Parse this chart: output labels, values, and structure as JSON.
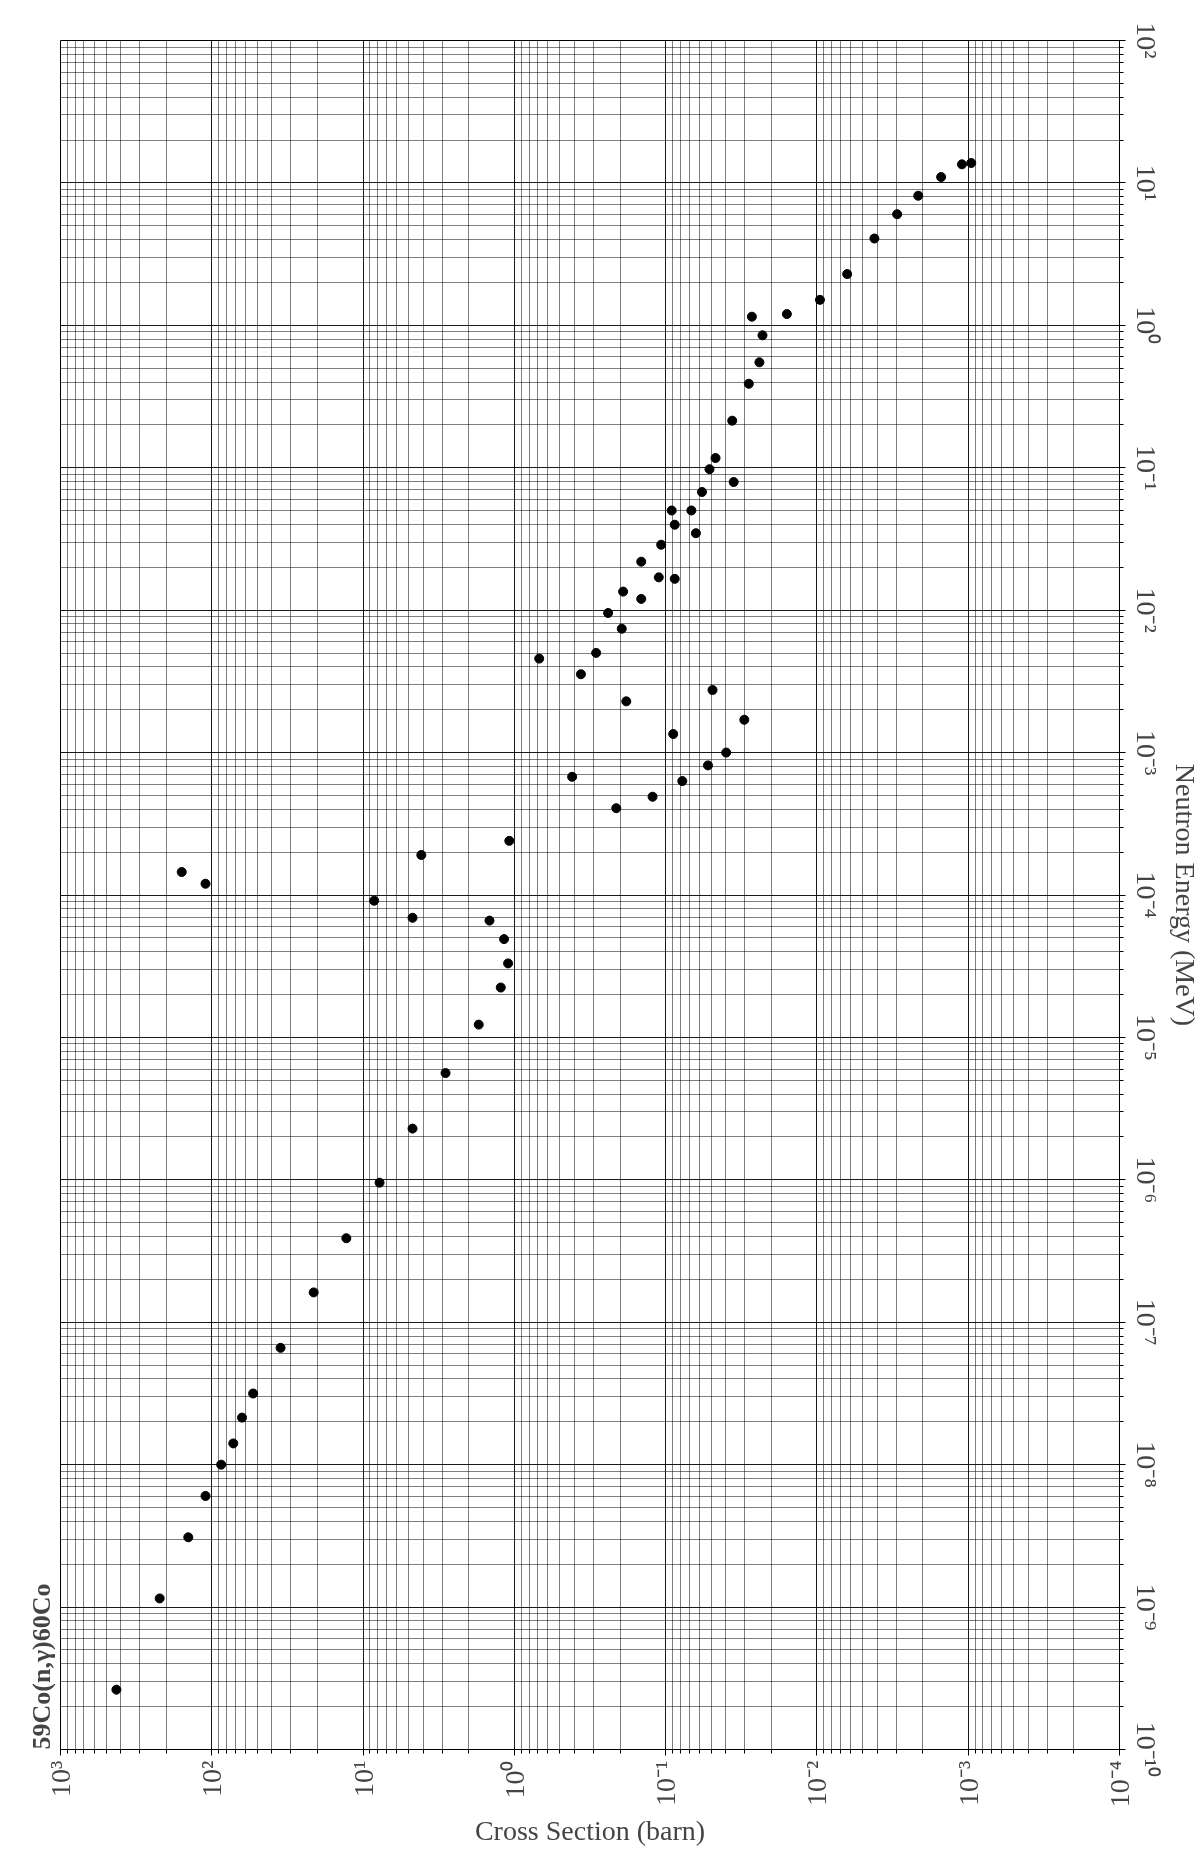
{
  "chart_data": {
    "type": "scatter",
    "title": "59Co(n,γ)60Co",
    "xlabel": "Cross Section (barn)",
    "ylabel": "Neutron Energy (MeV)",
    "x": [
      427,
      221,
      143,
      110,
      86.7,
      72.1,
      63.1,
      53.3,
      35.1,
      21.2,
      12.9,
      7.78,
      4.71,
      2.85,
      1.72,
      1.23,
      1.1,
      1.17,
      1.46,
      158,
      110,
      8.45,
      4.71,
      4.12,
      1.08,
      0.415,
      0.685,
      0.363,
      0.212,
      0.182,
      0.288,
      0.195,
      0.24,
      0.191,
      0.122,
      0.0891,
      0.0776,
      0.0525,
      0.049,
      0.0398,
      0.0302,
      0.145,
      0.145,
      0.111,
      0.0871,
      0.107,
      0.0871,
      0.0676,
      0.0631,
      0.0912,
      0.0575,
      0.0355,
      0.0513,
      0.0468,
      0.0363,
      0.0282,
      0.024,
      0.0229,
      0.0269,
      0.0158,
      0.00955,
      0.00631,
      0.00417,
      0.00295,
      0.00214,
      0.00151,
      0.0011,
      0.000955
    ],
    "values": [
      2.63e-10,
      1.15e-09,
      3.09e-09,
      6.03e-09,
      1e-08,
      1.41e-08,
      2.14e-08,
      3.16e-08,
      6.61e-08,
      1.62e-07,
      3.89e-07,
      9.55e-07,
      2.29e-06,
      5.62e-06,
      1.23e-05,
      2.24e-05,
      3.31e-05,
      4.9e-05,
      6.61e-05,
      0.000145,
      0.00012,
      9.12e-05,
      6.92e-05,
      0.000191,
      0.00024,
      0.000676,
      0.00457,
      0.00355,
      0.000407,
      0.00229,
      0.00501,
      0.00741,
      0.00955,
      0.0135,
      0.00049,
      0.00135,
      0.000631,
      0.000813,
      0.00275,
      0.001,
      0.0017,
      0.012,
      0.0219,
      0.017,
      0.0166,
      0.0288,
      0.0398,
      0.0501,
      0.0347,
      0.0501,
      0.0676,
      0.0794,
      0.0977,
      0.117,
      0.214,
      0.389,
      0.55,
      0.851,
      1.15,
      1.2,
      1.51,
      2.29,
      4.07,
      6.03,
      8.13,
      11.0,
      13.5,
      13.8
    ],
    "log": "xy",
    "xlim": [
      1000,
      0.0001
    ],
    "ylim": [
      1e-10,
      100
    ],
    "xticks": [
      {
        "value": 1000,
        "label": "10³"
      },
      {
        "value": 100,
        "label": "10²"
      },
      {
        "value": 10,
        "label": "10¹"
      },
      {
        "value": 1,
        "label": "10⁰"
      },
      {
        "value": 0.1,
        "label": "10⁻¹"
      },
      {
        "value": 0.01,
        "label": "10⁻²"
      },
      {
        "value": 0.001,
        "label": "10⁻³"
      },
      {
        "value": 0.0001,
        "label": "10⁻⁴"
      }
    ],
    "yticks": [
      {
        "value": 1e-10,
        "label": "10⁻¹⁰"
      },
      {
        "value": 1e-09,
        "label": "10⁻⁹"
      },
      {
        "value": 1e-08,
        "label": "10⁻⁸"
      },
      {
        "value": 1e-07,
        "label": "10⁻⁷"
      },
      {
        "value": 1e-06,
        "label": "10⁻⁶"
      },
      {
        "value": 1e-05,
        "label": "10⁻⁵"
      },
      {
        "value": 0.0001,
        "label": "10⁻⁴"
      },
      {
        "value": 0.001,
        "label": "10⁻³"
      },
      {
        "value": 0.01,
        "label": "10⁻²"
      },
      {
        "value": 0.1,
        "label": "10⁻¹"
      },
      {
        "value": 1,
        "label": "10⁰"
      },
      {
        "value": 10,
        "label": "10¹"
      },
      {
        "value": 100,
        "label": "10²"
      }
    ],
    "grid": true,
    "marker": "circle",
    "color": "#000000"
  }
}
